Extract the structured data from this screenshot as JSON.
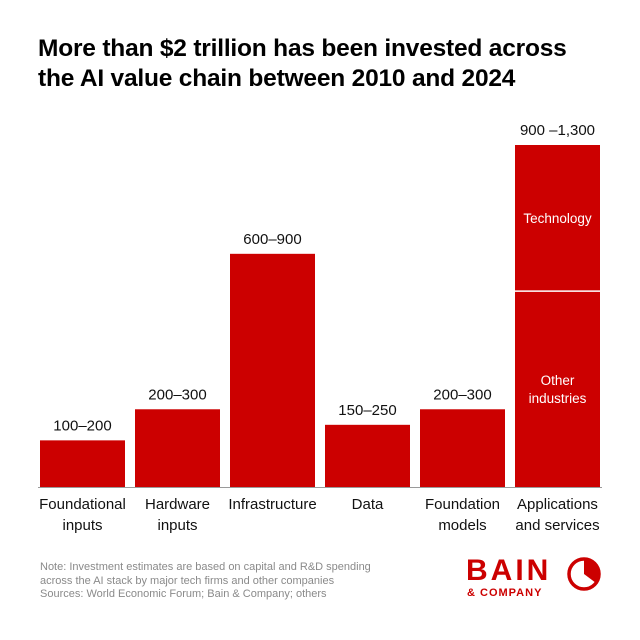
{
  "title": "More than $2 trillion has been invested across the AI value chain between 2010 and 2024",
  "chart_data": {
    "type": "bar",
    "title": "More than $2 trillion has been invested across the AI value chain between 2010 and 2024",
    "unit": "",
    "categories": [
      "Foundational inputs",
      "Hardware inputs",
      "Infrastructure",
      "Data",
      "Foundation models",
      "Applications and services"
    ],
    "category_labels": [
      [
        "Foundational",
        "inputs"
      ],
      [
        "Hardware",
        "inputs"
      ],
      [
        "Infrastructure"
      ],
      [
        "Data"
      ],
      [
        "Foundation",
        "models"
      ],
      [
        "Applications",
        "and services"
      ]
    ],
    "value_labels": [
      "100–200",
      "200–300",
      "600–900",
      "150–250",
      "200–300",
      "900 –1,300"
    ],
    "ranges": [
      [
        100,
        200
      ],
      [
        200,
        300
      ],
      [
        600,
        900
      ],
      [
        150,
        250
      ],
      [
        200,
        300
      ],
      [
        900,
        1300
      ]
    ],
    "values": [
      150,
      250,
      750,
      200,
      250,
      1100
    ],
    "stacked_segments": {
      "category": "Applications and services",
      "segments": [
        {
          "label": "Other industries",
          "value": 630,
          "lines": [
            "Other",
            "industries"
          ]
        },
        {
          "label": "Technology",
          "value": 470,
          "lines": [
            "Technology"
          ]
        }
      ]
    },
    "bar_color": "#cc0000",
    "yaxis_visible": false
  },
  "footnotes": {
    "note_line1": "Note: Investment estimates are based on capital and R&D spending",
    "note_line2": "across the AI stack by major tech firms and other companies",
    "sources": "Sources: World Economic Forum; Bain & Company; others"
  },
  "logo": {
    "word": "BAIN",
    "sub": "& COMPANY",
    "color": "#cc0000",
    "icon": "bain-circle-mark-icon"
  }
}
